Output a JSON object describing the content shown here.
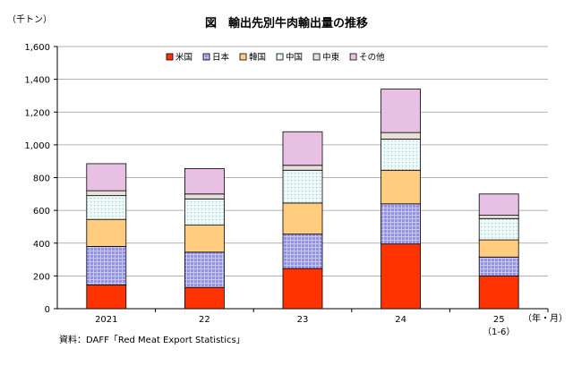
{
  "chart_data": {
    "type": "bar",
    "stacked": true,
    "title": "図　輸出先別牛肉輸出量の推移",
    "y_unit": "（千トン）",
    "x_unit": "（年・月）",
    "source": "資料：DAFF「Red Meat Export Statistics」",
    "categories": [
      "2021",
      "22",
      "23",
      "24",
      "25"
    ],
    "category_sublabels": [
      "",
      "",
      "",
      "",
      "（1-6）"
    ],
    "ylim": [
      0,
      1600
    ],
    "yticks": [
      "0",
      "200",
      "400",
      "600",
      "800",
      "1,000",
      "1,200",
      "1,400",
      "1,600"
    ],
    "grid": true,
    "legend_position": "top",
    "series": [
      {
        "name": "米国",
        "values": [
          145,
          130,
          245,
          395,
          200
        ],
        "color": "#ff3300",
        "pattern": "solid"
      },
      {
        "name": "日本",
        "values": [
          235,
          215,
          210,
          245,
          115
        ],
        "color": "#9090ee",
        "pattern": "grid"
      },
      {
        "name": "韓国",
        "values": [
          165,
          165,
          190,
          205,
          105
        ],
        "color": "#ffcc80",
        "pattern": "solid"
      },
      {
        "name": "中国",
        "values": [
          145,
          160,
          200,
          190,
          130
        ],
        "color": "#e6f7f7",
        "pattern": "dots"
      },
      {
        "name": "中東",
        "values": [
          30,
          30,
          30,
          40,
          20
        ],
        "color": "#e8e0d8",
        "pattern": "solid"
      },
      {
        "name": "その他",
        "values": [
          165,
          155,
          205,
          265,
          130
        ],
        "color": "#e8c0e4",
        "pattern": "solid"
      }
    ]
  }
}
